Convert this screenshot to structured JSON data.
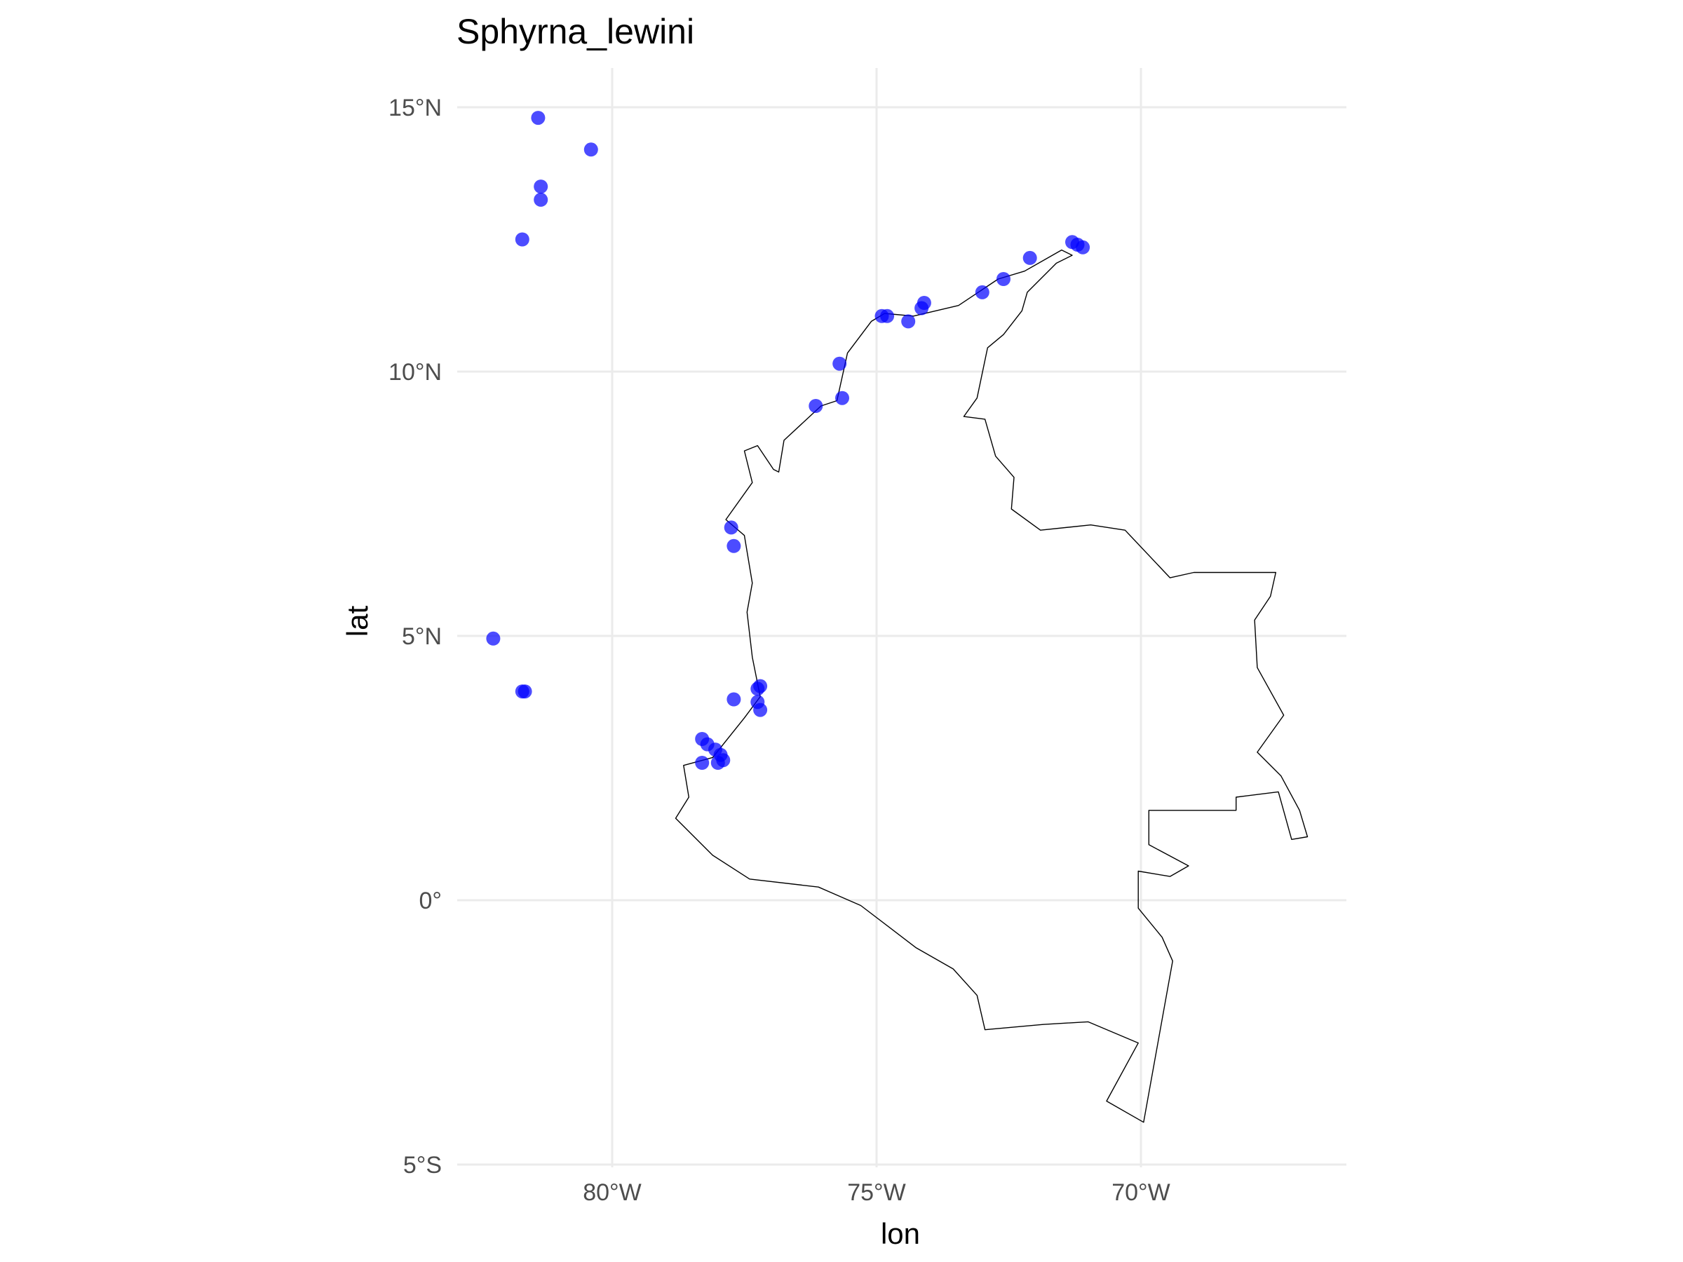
{
  "chart_data": {
    "type": "scatter",
    "title": "Sphyrna_lewini",
    "xlabel": "lon",
    "ylabel": "lat",
    "xlim": [
      -83,
      -69
    ],
    "ylim": [
      -5,
      15.7
    ],
    "x_ticks": [
      {
        "value": -80,
        "label": "80°W"
      },
      {
        "value": -75,
        "label": "75°W"
      },
      {
        "value": -70,
        "label": "70°W"
      }
    ],
    "y_ticks": [
      {
        "value": 15,
        "label": "15°N"
      },
      {
        "value": 10,
        "label": "10°N"
      },
      {
        "value": 5,
        "label": "5°N"
      },
      {
        "value": 0,
        "label": "0°"
      },
      {
        "value": -5,
        "label": "5°S"
      }
    ],
    "grid": true,
    "point_color": "#0000ff",
    "outline_color": "#000000",
    "points": [
      {
        "lon": -81.4,
        "lat": 14.8
      },
      {
        "lon": -80.4,
        "lat": 14.2
      },
      {
        "lon": -81.35,
        "lat": 13.5
      },
      {
        "lon": -81.35,
        "lat": 13.25
      },
      {
        "lon": -81.7,
        "lat": 12.5
      },
      {
        "lon": -71.3,
        "lat": 12.45
      },
      {
        "lon": -71.2,
        "lat": 12.4
      },
      {
        "lon": -71.1,
        "lat": 12.35
      },
      {
        "lon": -72.1,
        "lat": 12.15
      },
      {
        "lon": -72.6,
        "lat": 11.75
      },
      {
        "lon": -73.0,
        "lat": 11.5
      },
      {
        "lon": -74.1,
        "lat": 11.3
      },
      {
        "lon": -74.15,
        "lat": 11.2
      },
      {
        "lon": -74.4,
        "lat": 10.95
      },
      {
        "lon": -74.9,
        "lat": 11.05
      },
      {
        "lon": -74.8,
        "lat": 11.05
      },
      {
        "lon": -75.7,
        "lat": 10.15
      },
      {
        "lon": -75.65,
        "lat": 9.5
      },
      {
        "lon": -76.15,
        "lat": 9.35
      },
      {
        "lon": -77.75,
        "lat": 7.05
      },
      {
        "lon": -77.7,
        "lat": 6.7
      },
      {
        "lon": -82.25,
        "lat": 4.95
      },
      {
        "lon": -81.7,
        "lat": 3.95
      },
      {
        "lon": -81.65,
        "lat": 3.95
      },
      {
        "lon": -77.25,
        "lat": 4.0
      },
      {
        "lon": -77.2,
        "lat": 4.05
      },
      {
        "lon": -77.25,
        "lat": 3.75
      },
      {
        "lon": -77.2,
        "lat": 3.6
      },
      {
        "lon": -77.7,
        "lat": 3.8
      },
      {
        "lon": -78.3,
        "lat": 3.05
      },
      {
        "lon": -78.2,
        "lat": 2.95
      },
      {
        "lon": -78.05,
        "lat": 2.85
      },
      {
        "lon": -77.95,
        "lat": 2.75
      },
      {
        "lon": -77.9,
        "lat": 2.65
      },
      {
        "lon": -78.0,
        "lat": 2.6
      },
      {
        "lon": -78.3,
        "lat": 2.6
      }
    ],
    "outline": [
      [
        -71.3,
        12.2
      ],
      [
        -71.6,
        12.05
      ],
      [
        -72.15,
        11.5
      ],
      [
        -72.25,
        11.15
      ],
      [
        -72.6,
        10.7
      ],
      [
        -72.9,
        10.45
      ],
      [
        -73.1,
        9.5
      ],
      [
        -73.35,
        9.15
      ],
      [
        -72.95,
        9.1
      ],
      [
        -72.75,
        8.4
      ],
      [
        -72.4,
        8.0
      ],
      [
        -72.45,
        7.4
      ],
      [
        -71.9,
        7.0
      ],
      [
        -70.95,
        7.1
      ],
      [
        -70.3,
        7.0
      ],
      [
        -69.45,
        6.1
      ],
      [
        -69.0,
        6.2
      ],
      [
        -68.2,
        6.2
      ],
      [
        -67.45,
        6.2
      ],
      [
        -67.55,
        5.75
      ],
      [
        -67.85,
        5.3
      ],
      [
        -67.8,
        4.4
      ],
      [
        -67.3,
        3.5
      ],
      [
        -67.8,
        2.8
      ],
      [
        -67.35,
        2.35
      ],
      [
        -67.0,
        1.7
      ],
      [
        -66.85,
        1.2
      ],
      [
        -67.15,
        1.15
      ],
      [
        -67.4,
        2.05
      ],
      [
        -68.2,
        1.95
      ],
      [
        -68.2,
        1.7
      ],
      [
        -69.5,
        1.7
      ],
      [
        -69.85,
        1.7
      ],
      [
        -69.85,
        1.05
      ],
      [
        -69.1,
        0.65
      ],
      [
        -69.45,
        0.45
      ],
      [
        -70.05,
        0.55
      ],
      [
        -70.05,
        -0.15
      ],
      [
        -69.6,
        -0.7
      ],
      [
        -69.4,
        -1.15
      ],
      [
        -69.95,
        -4.2
      ],
      [
        -70.65,
        -3.8
      ],
      [
        -70.05,
        -2.7
      ],
      [
        -71.0,
        -2.3
      ],
      [
        -71.85,
        -2.35
      ],
      [
        -72.95,
        -2.45
      ],
      [
        -73.1,
        -1.8
      ],
      [
        -73.55,
        -1.3
      ],
      [
        -74.25,
        -0.9
      ],
      [
        -75.3,
        -0.1
      ],
      [
        -76.1,
        0.25
      ],
      [
        -77.4,
        0.4
      ],
      [
        -78.1,
        0.85
      ],
      [
        -78.8,
        1.55
      ],
      [
        -78.55,
        1.95
      ],
      [
        -78.65,
        2.55
      ],
      [
        -78.1,
        2.7
      ],
      [
        -77.5,
        3.45
      ],
      [
        -77.2,
        3.85
      ],
      [
        -77.35,
        4.6
      ],
      [
        -77.45,
        5.45
      ],
      [
        -77.35,
        6.0
      ],
      [
        -77.5,
        6.9
      ],
      [
        -77.85,
        7.2
      ],
      [
        -77.35,
        7.9
      ],
      [
        -77.5,
        8.5
      ],
      [
        -77.25,
        8.6
      ],
      [
        -76.95,
        8.15
      ],
      [
        -76.85,
        8.1
      ],
      [
        -76.75,
        8.7
      ],
      [
        -76.05,
        9.35
      ],
      [
        -75.75,
        9.45
      ],
      [
        -75.55,
        10.35
      ],
      [
        -75.1,
        10.95
      ],
      [
        -74.85,
        11.1
      ],
      [
        -74.3,
        11.05
      ],
      [
        -73.45,
        11.25
      ],
      [
        -72.7,
        11.75
      ],
      [
        -72.2,
        11.9
      ],
      [
        -71.5,
        12.3
      ],
      [
        -71.3,
        12.2
      ]
    ]
  }
}
